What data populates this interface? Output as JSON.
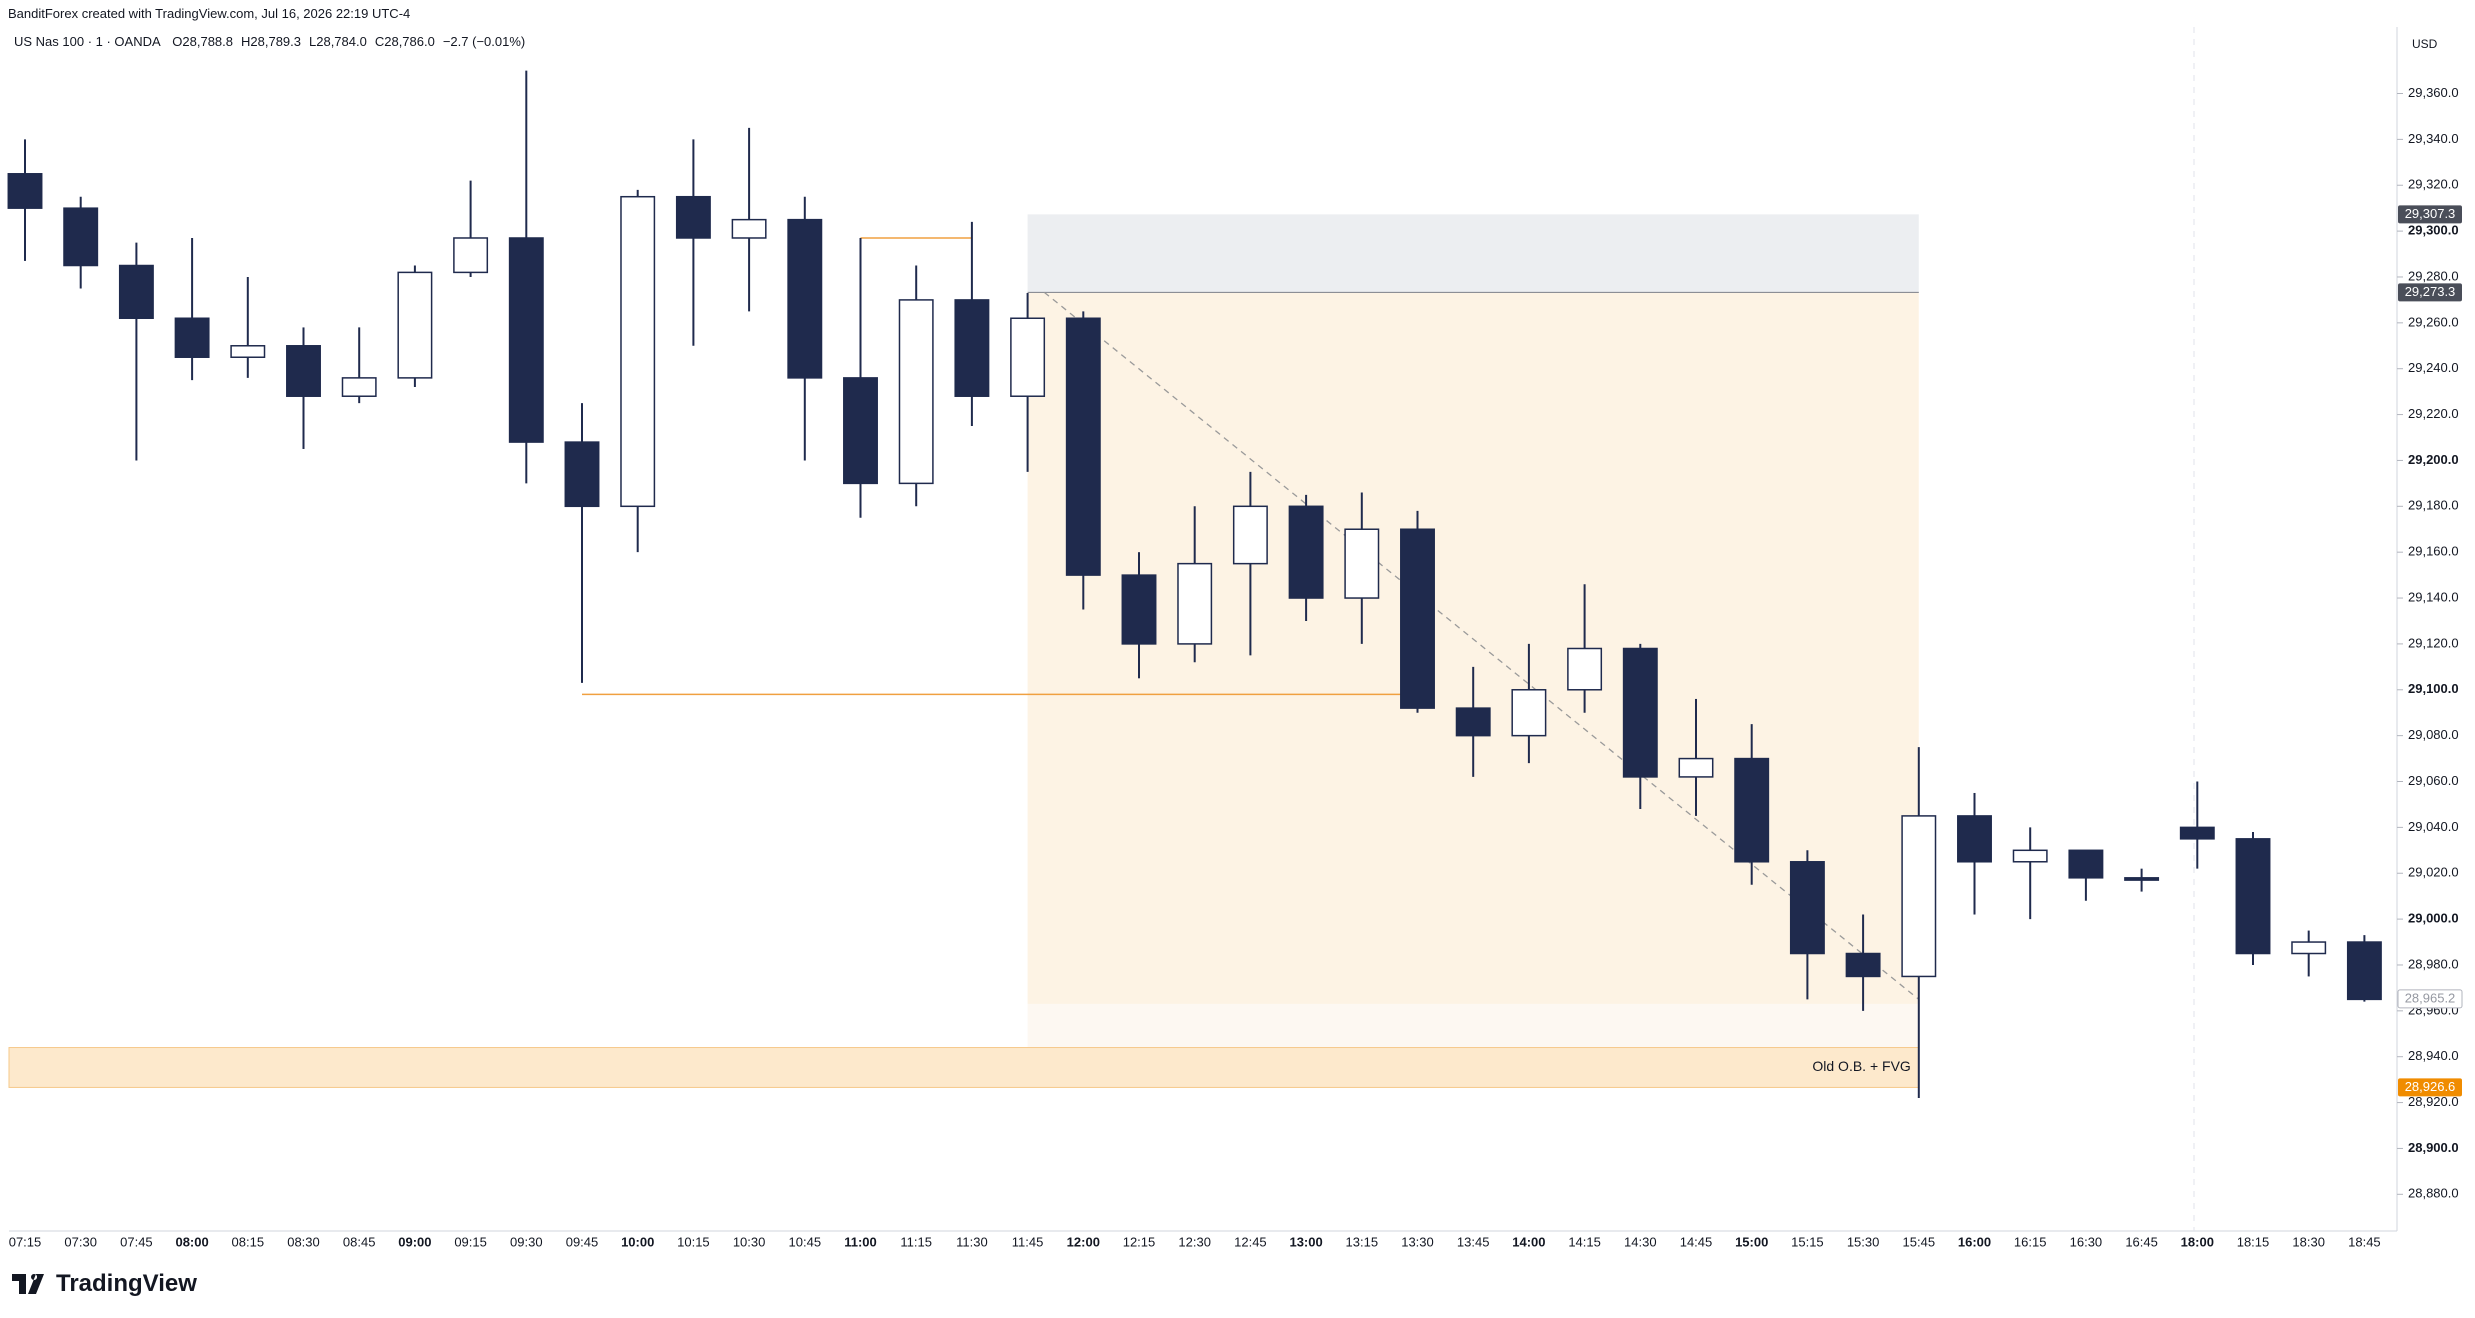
{
  "header": {
    "attribution": "BanditForex created with TradingView.com, Jul 16, 2026 22:19 UTC-4"
  },
  "chart_data": {
    "type": "candlestick",
    "title": "US Nas 100 · 1 · OANDA",
    "legend_values": [
      "O28,788.8",
      "H28,789.3",
      "L28,784.0",
      "C28,786.0",
      "−2.7 (−0.01%)"
    ],
    "currency": "USD",
    "categories": [
      "07:15",
      "07:30",
      "07:45",
      "08:00",
      "08:15",
      "08:30",
      "08:45",
      "09:00",
      "09:15",
      "09:30",
      "09:45",
      "10:00",
      "10:15",
      "10:30",
      "10:45",
      "11:00",
      "11:15",
      "11:30",
      "11:45",
      "12:00",
      "12:15",
      "12:30",
      "12:45",
      "13:00",
      "13:15",
      "13:30",
      "13:45",
      "14:00",
      "14:15",
      "14:30",
      "14:45",
      "15:00",
      "15:15",
      "15:30",
      "15:45",
      "16:00",
      "16:15",
      "16:30",
      "16:45",
      "18:00",
      "18:15",
      "18:30",
      "18:45"
    ],
    "open": [
      29325,
      29310,
      29285,
      29262,
      29245,
      29250,
      29228,
      29236,
      29282,
      29297,
      29208,
      29180,
      29315,
      29297,
      29305,
      29236,
      29190,
      29270,
      29228,
      29262,
      29150,
      29120,
      29155,
      29180,
      29140,
      29170,
      29092,
      29080,
      29100,
      29118,
      29062,
      29070,
      29025,
      28985,
      28975,
      29045,
      29025,
      29030,
      29018,
      29040,
      29035,
      28985,
      28990
    ],
    "high": [
      29340,
      29315,
      29295,
      29297,
      29280,
      29258,
      29258,
      29285,
      29322,
      29370,
      29225,
      29318,
      29340,
      29345,
      29315,
      29297,
      29285,
      29304,
      29273,
      29265,
      29160,
      29180,
      29195,
      29185,
      29186,
      29178,
      29110,
      29120,
      29146,
      29120,
      29096,
      29085,
      29030,
      29002,
      29075,
      29055,
      29040,
      29030,
      29022,
      29060,
      29038,
      28995,
      28993
    ],
    "low": [
      29287,
      29275,
      29200,
      29235,
      29236,
      29205,
      29225,
      29232,
      29280,
      29190,
      29103,
      29160,
      29250,
      29265,
      29200,
      29175,
      29180,
      29215,
      29195,
      29135,
      29105,
      29112,
      29115,
      29130,
      29120,
      29090,
      29062,
      29068,
      29090,
      29048,
      29045,
      29015,
      28965,
      28960,
      28922,
      29002,
      29000,
      29008,
      29012,
      29022,
      28980,
      28975,
      28964
    ],
    "close": [
      29310,
      29285,
      29262,
      29245,
      29250,
      29228,
      29236,
      29282,
      29297,
      29208,
      29180,
      29315,
      29297,
      29305,
      29236,
      29190,
      29270,
      29228,
      29262,
      29150,
      29120,
      29155,
      29180,
      29140,
      29170,
      29092,
      29080,
      29100,
      29118,
      29062,
      29070,
      29025,
      28985,
      28975,
      29045,
      29025,
      29030,
      29018,
      29017,
      29035,
      28985,
      28990,
      28965
    ],
    "up_color": "#ffffff",
    "down_color": "#1f2a4d",
    "ylim": [
      28864,
      29389
    ],
    "yticks": [
      {
        "value": 28880,
        "label": "28,880.0"
      },
      {
        "value": 28900,
        "label": "28,900.0"
      },
      {
        "value": 28920,
        "label": "28,920.0"
      },
      {
        "value": 28940,
        "label": "28,940.0"
      },
      {
        "value": 28960,
        "label": "28,960.0"
      },
      {
        "value": 28980,
        "label": "28,980.0"
      },
      {
        "value": 29000,
        "label": "29,000.0"
      },
      {
        "value": 29020,
        "label": "29,020.0"
      },
      {
        "value": 29040,
        "label": "29,040.0"
      },
      {
        "value": 29060,
        "label": "29,060.0"
      },
      {
        "value": 29080,
        "label": "29,080.0"
      },
      {
        "value": 29100,
        "label": "29,100.0"
      },
      {
        "value": 29120,
        "label": "29,120.0"
      },
      {
        "value": 29140,
        "label": "29,140.0"
      },
      {
        "value": 29160,
        "label": "29,160.0"
      },
      {
        "value": 29180,
        "label": "29,180.0"
      },
      {
        "value": 29200,
        "label": "29,200.0"
      },
      {
        "value": 29220,
        "label": "29,220.0"
      },
      {
        "value": 29240,
        "label": "29,240.0"
      },
      {
        "value": 29260,
        "label": "29,260.0"
      },
      {
        "value": 29280,
        "label": "29,280.0"
      },
      {
        "value": 29300,
        "label": "29,300.0"
      },
      {
        "value": 29320,
        "label": "29,320.0"
      },
      {
        "value": 29340,
        "label": "29,340.0"
      },
      {
        "value": 29360,
        "label": "29,360.0"
      }
    ],
    "price_labels": [
      {
        "value": 29307.3,
        "label": "29,307.3",
        "color": "#4a4e59"
      },
      {
        "value": 29273.3,
        "label": "29,273.3",
        "color": "#4a4e59"
      },
      {
        "value": 28965.2,
        "label": "28,965.2",
        "color": "#ffffff"
      },
      {
        "value": 28926.6,
        "label": "28,926.6",
        "color": "#f08c00"
      }
    ],
    "zones": [
      {
        "from": "11:45",
        "to": "15:45",
        "top": 29307.3,
        "bottom": 29273.3,
        "color": "#eceef1"
      },
      {
        "from": "11:45",
        "to": "15:45",
        "top": 29273.3,
        "bottom": 28963,
        "color": "#fdf3e4"
      },
      {
        "from": "11:45",
        "to": "15:45",
        "top": 28963,
        "bottom": 28926.6,
        "color": "#fdf8f2"
      },
      {
        "from": "07:15",
        "to": "15:45",
        "top": 28944,
        "bottom": 28926.6,
        "color": "#fde9cc",
        "label": "Old O.B. + FVG"
      }
    ],
    "lines": [
      {
        "from": "11:00",
        "to": "11:30",
        "price": 29297,
        "color": "#f0a040"
      },
      {
        "from": "09:45",
        "to": "13:30",
        "price": 29098,
        "color": "#f0a040"
      }
    ],
    "trend_line": {
      "from": "11:45",
      "to": "15:45",
      "start": 29273.3,
      "end": 28965,
      "color": "#9a9a9a"
    }
  },
  "footer": {
    "brand": "TradingView"
  }
}
